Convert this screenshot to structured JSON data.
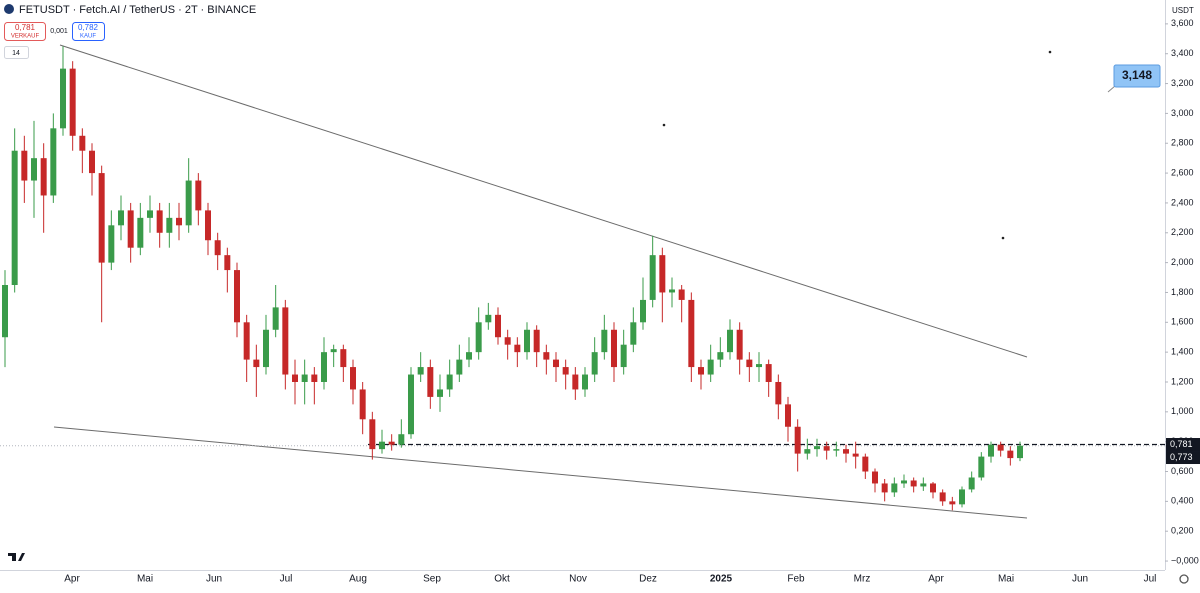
{
  "header": {
    "symbol": "FETUSDT · Fetch.AI / TetherUS · 2T · BINANCE",
    "sell_price": "0,781",
    "sell_label": "VERKAUF",
    "spread": "0,001",
    "buy_price": "0,782",
    "buy_label": "KAUF",
    "indicator": "14"
  },
  "chart_data": {
    "type": "candlestick",
    "axis_unit": "USDT",
    "up_color": "#3a9b4a",
    "down_color": "#c62828",
    "grid": false,
    "ylim": [
      -0.06,
      3.76
    ],
    "yticks": [
      {
        "value": 3.6,
        "label": "3,600"
      },
      {
        "value": 3.4,
        "label": "3,400"
      },
      {
        "value": 3.2,
        "label": "3,200"
      },
      {
        "value": 3.0,
        "label": "3,000"
      },
      {
        "value": 2.8,
        "label": "2,800"
      },
      {
        "value": 2.6,
        "label": "2,600"
      },
      {
        "value": 2.4,
        "label": "2,400"
      },
      {
        "value": 2.2,
        "label": "2,200"
      },
      {
        "value": 2.0,
        "label": "2,000"
      },
      {
        "value": 1.8,
        "label": "1,800"
      },
      {
        "value": 1.6,
        "label": "1,600"
      },
      {
        "value": 1.4,
        "label": "1,400"
      },
      {
        "value": 1.2,
        "label": "1,200"
      },
      {
        "value": 1.0,
        "label": "1,000"
      },
      {
        "value": 0.8,
        "label": "0,800"
      },
      {
        "value": 0.6,
        "label": "0,600"
      },
      {
        "value": 0.4,
        "label": "0,400"
      },
      {
        "value": 0.2,
        "label": "0,200"
      },
      {
        "value": 0,
        "label": "−0,000"
      }
    ],
    "x_labels": [
      "Apr",
      "Mai",
      "Jun",
      "Jul",
      "Aug",
      "Sep",
      "Okt",
      "Nov",
      "Dez",
      "2025",
      "Feb",
      "Mrz",
      "Apr",
      "Mai",
      "Jun",
      "Jul"
    ],
    "price_labels": [
      {
        "value": 0.781,
        "label": "0,781"
      },
      {
        "value": 0.773,
        "label": "0,773"
      }
    ],
    "callout": "3,148",
    "candles": {
      "open": [
        1.5,
        1.85,
        2.75,
        2.55,
        2.7,
        2.45,
        2.9,
        3.3,
        2.85,
        2.75,
        2.6,
        2.0,
        2.25,
        2.35,
        2.1,
        2.3,
        2.35,
        2.2,
        2.3,
        2.25,
        2.55,
        2.35,
        2.15,
        2.05,
        1.95,
        1.6,
        1.35,
        1.3,
        1.55,
        1.7,
        1.25,
        1.2,
        1.25,
        1.2,
        1.4,
        1.42,
        1.3,
        1.15,
        0.95,
        0.75,
        0.8,
        0.78,
        0.85,
        1.25,
        1.3,
        1.1,
        1.15,
        1.25,
        1.35,
        1.4,
        1.6,
        1.65,
        1.5,
        1.45,
        1.4,
        1.55,
        1.4,
        1.35,
        1.3,
        1.25,
        1.15,
        1.25,
        1.4,
        1.55,
        1.3,
        1.45,
        1.6,
        1.75,
        2.05,
        1.8,
        1.82,
        1.75,
        1.3,
        1.25,
        1.35,
        1.4,
        1.55,
        1.35,
        1.3,
        1.32,
        1.2,
        1.05,
        0.9,
        0.72,
        0.75,
        0.77,
        0.74,
        0.75,
        0.72,
        0.7,
        0.6,
        0.52,
        0.46,
        0.52,
        0.54,
        0.5,
        0.52,
        0.46,
        0.4,
        0.38,
        0.48,
        0.56,
        0.7,
        0.78,
        0.74,
        0.69
      ],
      "high": [
        1.95,
        2.9,
        2.85,
        2.95,
        2.8,
        3.0,
        3.45,
        3.35,
        2.9,
        2.8,
        2.65,
        2.35,
        2.45,
        2.4,
        2.4,
        2.45,
        2.4,
        2.4,
        2.4,
        2.7,
        2.6,
        2.4,
        2.2,
        2.1,
        2.0,
        1.65,
        1.45,
        1.65,
        1.85,
        1.75,
        1.35,
        1.35,
        1.3,
        1.5,
        1.45,
        1.45,
        1.35,
        1.2,
        1.0,
        0.88,
        0.85,
        0.95,
        1.3,
        1.4,
        1.35,
        1.25,
        1.35,
        1.45,
        1.5,
        1.7,
        1.73,
        1.7,
        1.55,
        1.5,
        1.6,
        1.58,
        1.45,
        1.4,
        1.35,
        1.3,
        1.3,
        1.5,
        1.65,
        1.6,
        1.55,
        1.7,
        1.9,
        2.18,
        2.1,
        1.9,
        1.85,
        1.8,
        1.35,
        1.45,
        1.5,
        1.62,
        1.6,
        1.4,
        1.4,
        1.35,
        1.25,
        1.1,
        0.95,
        0.82,
        0.82,
        0.8,
        0.8,
        0.78,
        0.8,
        0.72,
        0.62,
        0.55,
        0.56,
        0.58,
        0.56,
        0.56,
        0.53,
        0.48,
        0.43,
        0.5,
        0.6,
        0.73,
        0.8,
        0.8,
        0.77,
        0.8
      ],
      "low": [
        1.3,
        1.8,
        2.4,
        2.3,
        2.2,
        2.4,
        2.85,
        2.75,
        2.6,
        2.45,
        1.6,
        1.95,
        2.15,
        2.0,
        2.05,
        2.2,
        2.1,
        2.1,
        2.15,
        2.2,
        2.25,
        2.05,
        1.95,
        1.8,
        1.5,
        1.2,
        1.1,
        1.25,
        1.5,
        1.15,
        1.05,
        1.05,
        1.05,
        1.15,
        1.3,
        1.2,
        1.05,
        0.85,
        0.68,
        0.72,
        0.74,
        0.76,
        0.82,
        1.2,
        1.02,
        1.0,
        1.1,
        1.2,
        1.3,
        1.35,
        1.55,
        1.45,
        1.35,
        1.3,
        1.35,
        1.3,
        1.25,
        1.2,
        1.15,
        1.08,
        1.1,
        1.2,
        1.35,
        1.2,
        1.25,
        1.4,
        1.55,
        1.7,
        1.6,
        1.7,
        1.6,
        1.2,
        1.15,
        1.2,
        1.3,
        1.35,
        1.25,
        1.2,
        1.2,
        1.1,
        0.95,
        0.8,
        0.6,
        0.68,
        0.7,
        0.68,
        0.7,
        0.66,
        0.62,
        0.55,
        0.46,
        0.4,
        0.43,
        0.49,
        0.46,
        0.47,
        0.42,
        0.37,
        0.34,
        0.36,
        0.46,
        0.54,
        0.66,
        0.7,
        0.64,
        0.67
      ],
      "close": [
        1.85,
        2.75,
        2.55,
        2.7,
        2.45,
        2.9,
        3.3,
        2.85,
        2.75,
        2.6,
        2.0,
        2.25,
        2.35,
        2.1,
        2.3,
        2.35,
        2.2,
        2.3,
        2.25,
        2.55,
        2.35,
        2.15,
        2.05,
        1.95,
        1.6,
        1.35,
        1.3,
        1.55,
        1.7,
        1.25,
        1.2,
        1.25,
        1.2,
        1.4,
        1.42,
        1.3,
        1.15,
        0.95,
        0.75,
        0.8,
        0.78,
        0.85,
        1.25,
        1.3,
        1.1,
        1.15,
        1.25,
        1.35,
        1.4,
        1.6,
        1.65,
        1.5,
        1.45,
        1.4,
        1.55,
        1.4,
        1.35,
        1.3,
        1.25,
        1.15,
        1.25,
        1.4,
        1.55,
        1.3,
        1.45,
        1.6,
        1.75,
        2.05,
        1.8,
        1.82,
        1.75,
        1.3,
        1.25,
        1.35,
        1.4,
        1.55,
        1.35,
        1.3,
        1.32,
        1.2,
        1.05,
        0.9,
        0.72,
        0.75,
        0.77,
        0.74,
        0.75,
        0.72,
        0.7,
        0.6,
        0.52,
        0.46,
        0.52,
        0.54,
        0.5,
        0.52,
        0.46,
        0.4,
        0.38,
        0.48,
        0.56,
        0.7,
        0.78,
        0.74,
        0.69,
        0.773
      ]
    }
  }
}
